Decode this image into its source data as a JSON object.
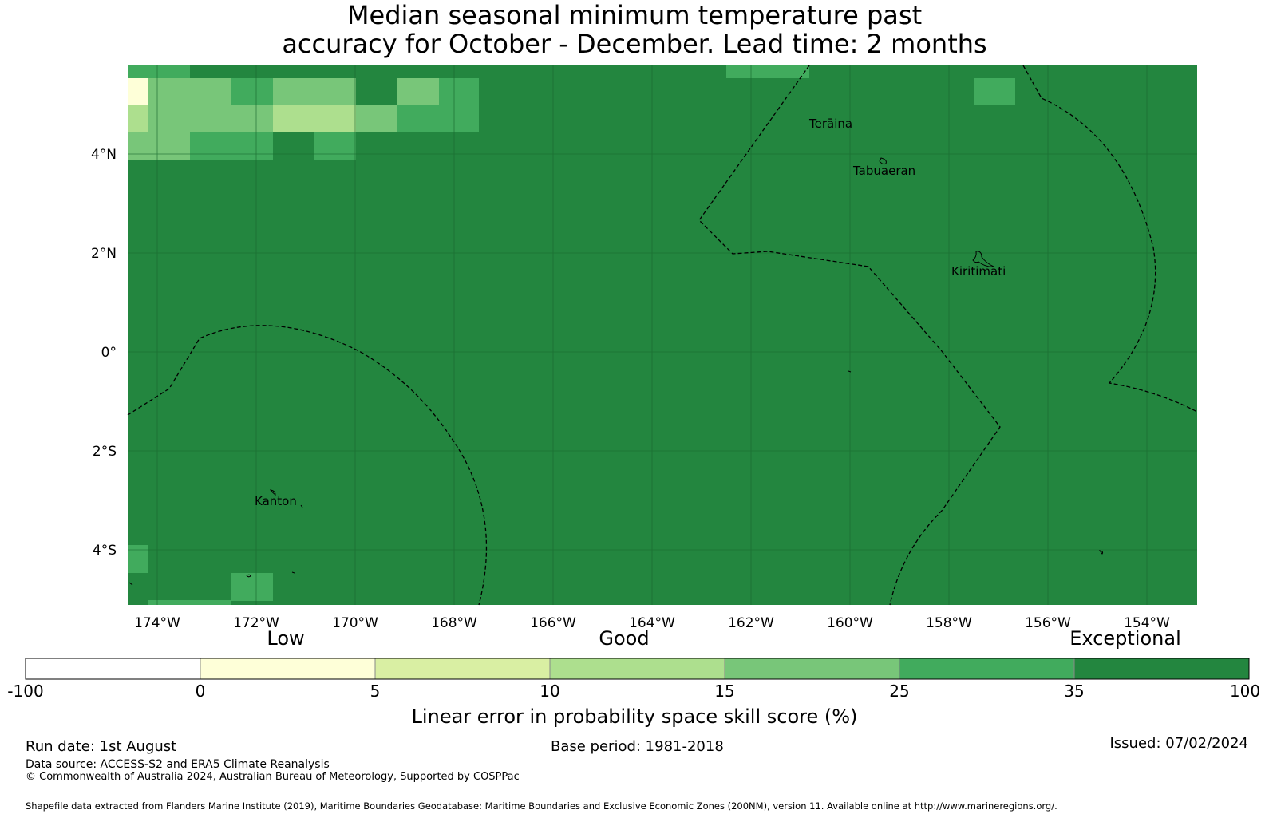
{
  "title": {
    "line1": "Median seasonal minimum temperature past",
    "line2": "accuracy for October - December. Lead time: 2 months"
  },
  "map": {
    "background_color": "#23863f",
    "lat_ticks": [
      "4°N",
      "2°N",
      "0°",
      "2°S",
      "4°S"
    ],
    "lon_ticks": [
      "174°W",
      "172°W",
      "170°W",
      "168°W",
      "166°W",
      "164°W",
      "162°W",
      "160°W",
      "158°W",
      "156°W",
      "154°W"
    ],
    "places": [
      "Terāina",
      "Tabuaeran",
      "Kiritimati",
      "Kanton"
    ]
  },
  "colorbar": {
    "headings": {
      "low": "Low",
      "good": "Good",
      "exceptional": "Exceptional"
    },
    "ticks": [
      "-100",
      "0",
      "5",
      "10",
      "15",
      "25",
      "35",
      "100"
    ],
    "colors": [
      "#ffffff",
      "#feffd8",
      "#d9efa3",
      "#addf8e",
      "#78c679",
      "#41ab5d",
      "#23863f"
    ],
    "label": "Linear error in probability space skill score (%)"
  },
  "footer": {
    "run_date": "Run date: 1st August",
    "base_period": "Base period: 1981-2018",
    "issued": "Issued: 07/02/2024",
    "data_source": "Data source: ACCESS-S2 and ERA5 Climate Reanalysis",
    "copyright": "© Commonwealth of Australia 2024, Australian Bureau of Meteorology, Supported by COSPPac",
    "shapefile": "Shapefile data extracted from Flanders Marine Institute (2019), Maritime Boundaries Geodatabase: Maritime Boundaries and Exclusive Economic Zones (200NM), version 11. Available online at http://www.marineregions.org/."
  }
}
